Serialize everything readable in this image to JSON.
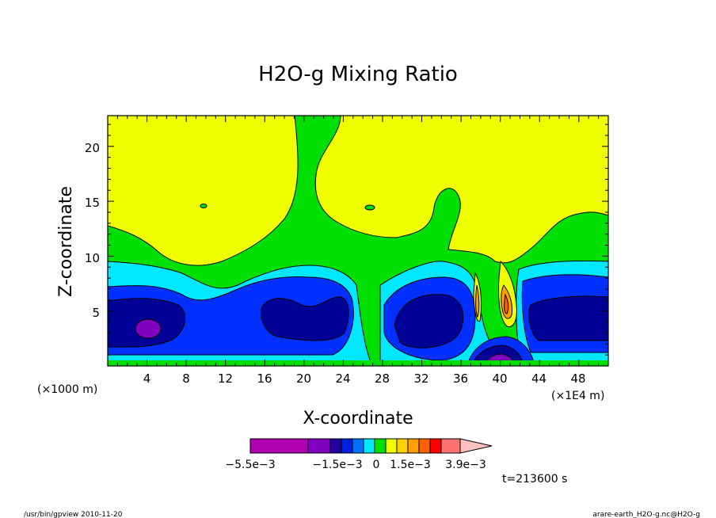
{
  "chart_data": {
    "type": "heatmap",
    "subtype": "filled-contour",
    "title": "H2O-g Mixing Ratio",
    "xlabel": "X-coordinate",
    "ylabel": "Z-coordinate",
    "x_unit_left": "(×1000 m)",
    "x_unit_right": "(×1E4 m)",
    "xlim": [
      0,
      51
    ],
    "ylim": [
      0,
      22.8
    ],
    "x_ticks": [
      "4",
      "8",
      "12",
      "16",
      "20",
      "24",
      "28",
      "32",
      "36",
      "40",
      "44",
      "48"
    ],
    "y_ticks": [
      "5",
      "10",
      "15",
      "20"
    ],
    "grid": false,
    "time_label": "t=213600 s",
    "colorbar": {
      "orientation": "horizontal",
      "labels": [
        "−5.5e−3",
        "−1.5e−3",
        "0",
        "1.5e−3",
        "3.9e−3"
      ],
      "colors": [
        "#b000b0",
        "#8000c0",
        "#2000a0",
        "#0020e0",
        "#0070ff",
        "#00e8ff",
        "#00e000",
        "#f0ff00",
        "#ffd000",
        "#ffa000",
        "#ff6000",
        "#ff0000",
        "#ff7070",
        "#ffc0c0"
      ]
    },
    "fill_colors": {
      "upper": "#f0ff00",
      "mid": "#00e000",
      "low": "#00e8ff",
      "lower": "#0040ff",
      "core": "#0000a0",
      "min": "#8000c0"
    }
  },
  "footer": {
    "left": "/usr/bin/gpview   2010-11-20",
    "right": "arare-earth_H2O-g.nc@H2O-g"
  }
}
